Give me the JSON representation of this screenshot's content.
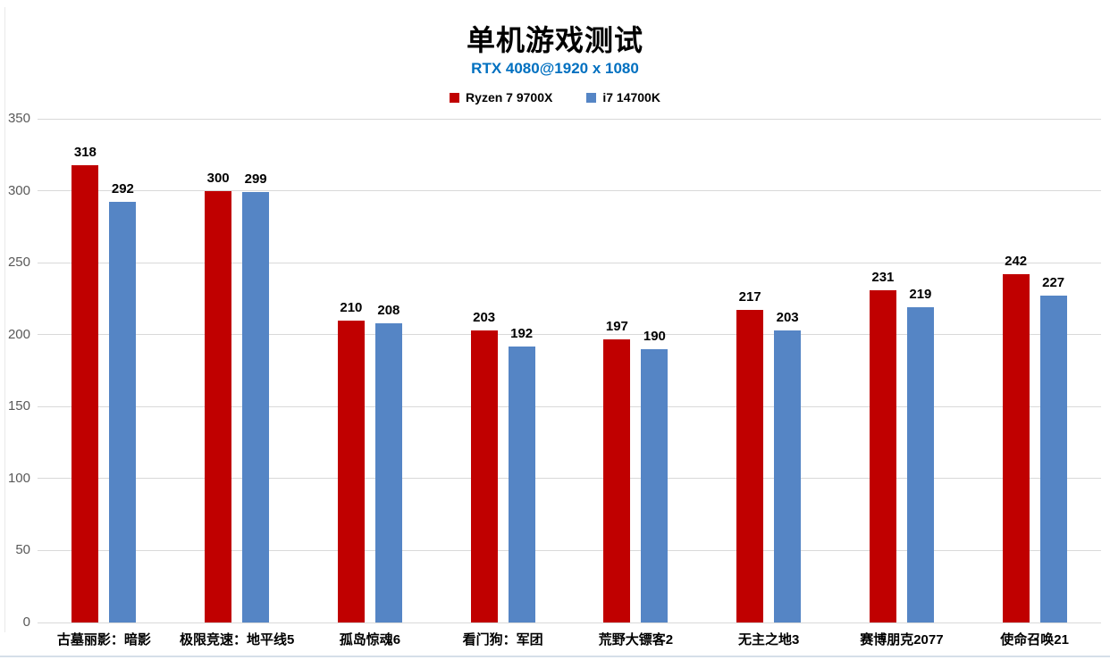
{
  "chart_data": {
    "type": "bar",
    "title": "单机游戏测试",
    "subtitle": "RTX 4080@1920 x 1080",
    "subtitle_color": "#0070c0",
    "categories": [
      "古墓丽影：暗影",
      "极限竞速：地平线5",
      "孤岛惊魂6",
      "看门狗：军团",
      "荒野大镖客2",
      "无主之地3",
      "赛博朋克2077",
      "使命召唤21"
    ],
    "series": [
      {
        "name": "Ryzen 7 9700X",
        "color": "#c00000",
        "values": [
          318,
          300,
          210,
          203,
          197,
          217,
          231,
          242
        ]
      },
      {
        "name": "i7 14700K",
        "color": "#5585c5",
        "values": [
          292,
          299,
          208,
          192,
          190,
          203,
          219,
          227
        ]
      }
    ],
    "ylim": [
      0,
      350
    ],
    "ytick_step": 50,
    "yticks": [
      "0",
      "50",
      "100",
      "150",
      "200",
      "250",
      "300",
      "350"
    ],
    "grid": true,
    "legend_position": "top",
    "xlabel": "",
    "ylabel": ""
  }
}
